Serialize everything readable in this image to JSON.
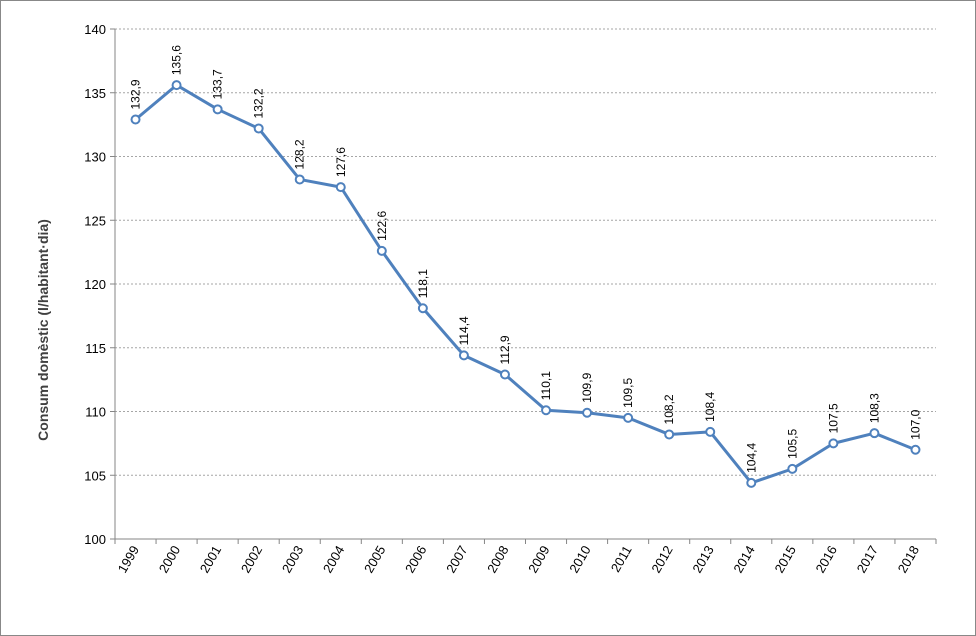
{
  "chart_data": {
    "type": "line",
    "title": "",
    "xlabel": "",
    "ylabel": "Consum domèstic (l/habitant·dia)",
    "ylim": [
      100,
      140
    ],
    "yticks": [
      "100",
      "105",
      "110",
      "115",
      "120",
      "125",
      "130",
      "135",
      "140"
    ],
    "grid": true,
    "legend": "none",
    "line_color": "#4F81BD",
    "categories": [
      "1999",
      "2000",
      "2001",
      "2002",
      "2003",
      "2004",
      "2005",
      "2006",
      "2007",
      "2008",
      "2009",
      "2010",
      "2011",
      "2012",
      "2013",
      "2014",
      "2015",
      "2016",
      "2017",
      "2018"
    ],
    "series": [
      {
        "values": [
          132.9,
          135.6,
          133.7,
          132.2,
          128.2,
          127.6,
          122.6,
          118.1,
          114.4,
          112.9,
          110.1,
          109.9,
          109.5,
          108.2,
          108.4,
          104.4,
          105.5,
          107.5,
          108.3,
          107.0
        ],
        "labels": [
          "132,9",
          "135,6",
          "133,7",
          "132,2",
          "128,2",
          "127,6",
          "122,6",
          "118,1",
          "114,4",
          "112,9",
          "110,1",
          "109,9",
          "109,5",
          "108,2",
          "108,4",
          "104,4",
          "105,5",
          "107,5",
          "108,3",
          "107,0"
        ]
      }
    ]
  }
}
